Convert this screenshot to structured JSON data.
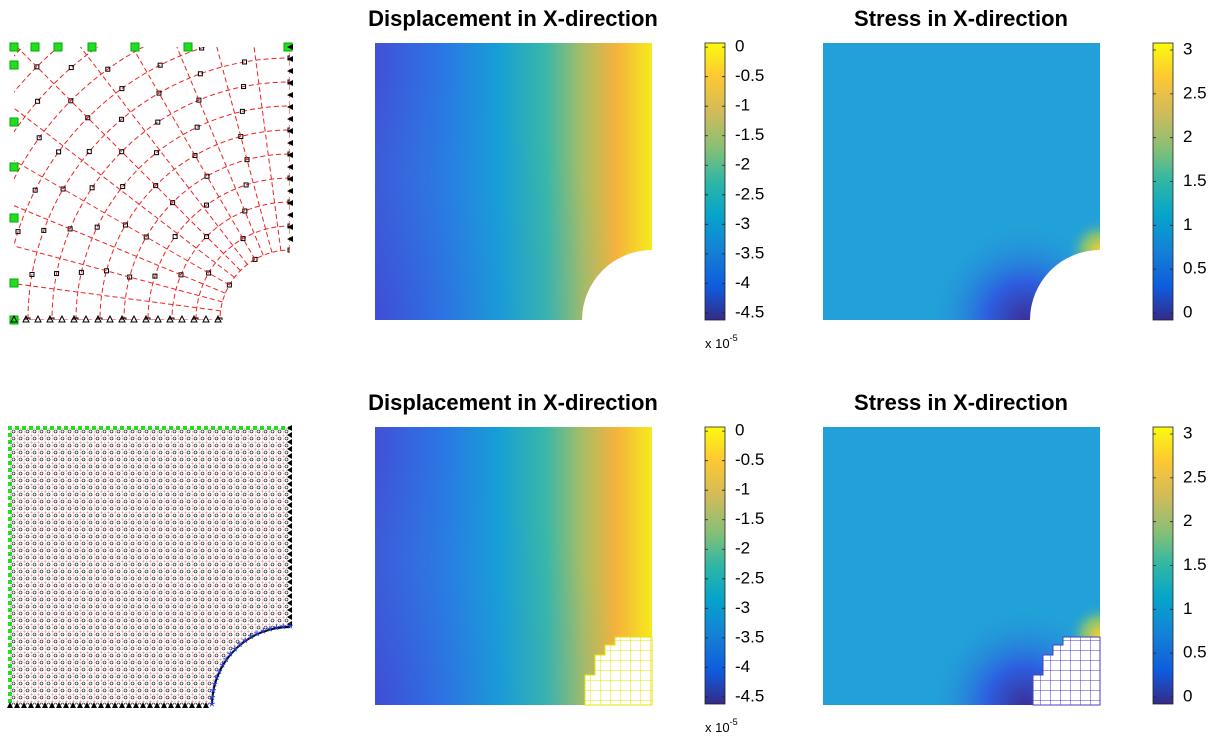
{
  "chart_data": [
    {
      "type": "heatmap",
      "title": "Displacement in X-direction",
      "colorbar": {
        "lim": [
          -4.62,
          0.07
        ],
        "ticks": [
          0,
          -0.5,
          -1,
          -1.5,
          -2,
          -2.5,
          -3,
          -3.5,
          -4,
          -4.5
        ],
        "multiplier": {
          "base": "x 10",
          "exponent": "-5"
        }
      }
    },
    {
      "type": "heatmap",
      "title": "Stress in X-direction",
      "colorbar": {
        "lim": [
          -0.08,
          3.08
        ],
        "ticks": [
          3,
          2.5,
          2,
          1.5,
          1,
          0.5,
          0
        ]
      }
    },
    {
      "type": "heatmap",
      "title": "Displacement in X-direction",
      "colorbar": {
        "lim": [
          -4.62,
          0.07
        ],
        "ticks": [
          0,
          -0.5,
          -1,
          -1.5,
          -2,
          -2.5,
          -3,
          -3.5,
          -4,
          -4.5
        ],
        "multiplier": {
          "base": "x 10",
          "exponent": "-5"
        }
      }
    },
    {
      "type": "heatmap",
      "title": "Stress in X-direction",
      "colorbar": {
        "lim": [
          -0.08,
          3.08
        ],
        "ticks": [
          3,
          2.5,
          2,
          1.5,
          1,
          0.5,
          0
        ]
      }
    }
  ]
}
